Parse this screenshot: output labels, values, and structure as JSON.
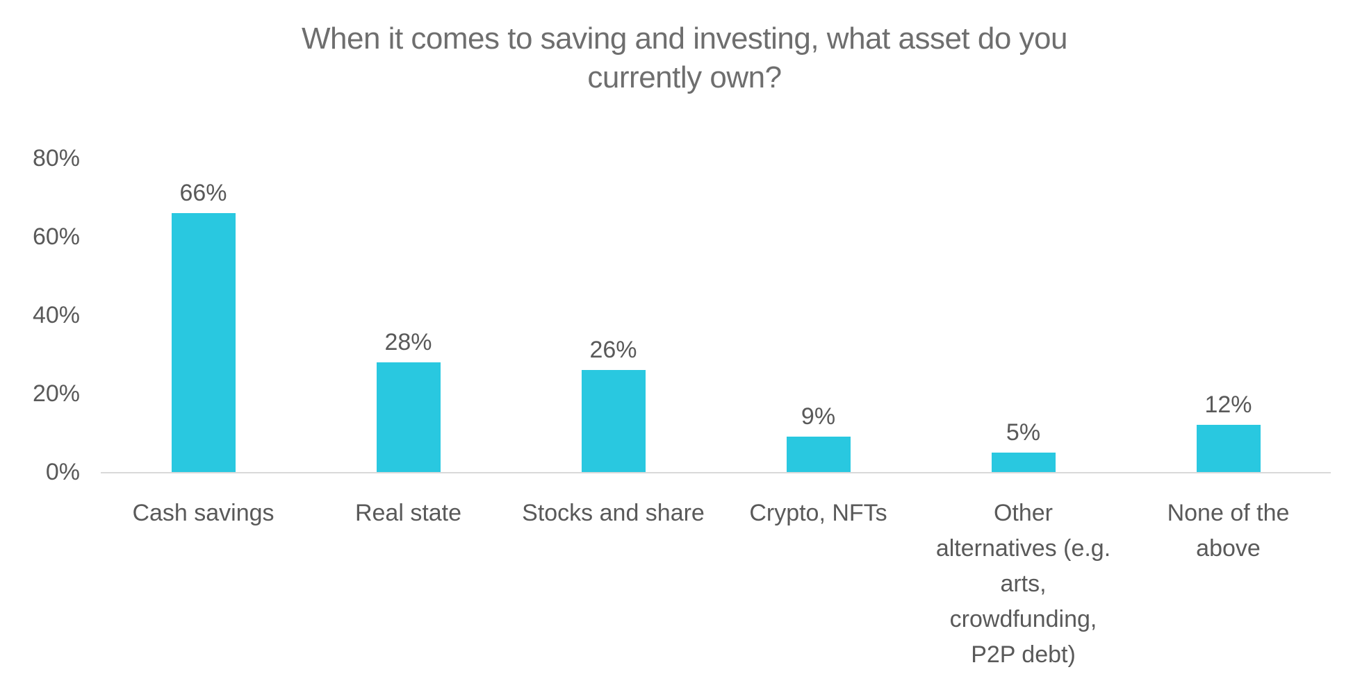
{
  "chart_data": {
    "type": "bar",
    "title": "When it comes to saving and investing, what asset do you currently own?",
    "title_display": "When it comes to saving and investing, what asset do you\ncurrently own?",
    "categories": [
      "Cash savings",
      "Real state",
      "Stocks and share",
      "Crypto, NFTs",
      "Other alternatives (e.g. arts, crowdfunding, P2P debt)",
      "None of the above"
    ],
    "categories_display": [
      "Cash savings",
      "Real state",
      "Stocks and share",
      "Crypto, NFTs",
      "Other\nalternatives (e.g.\narts,\ncrowdfunding,\nP2P debt)",
      "None of the\nabove"
    ],
    "values": [
      66,
      28,
      26,
      9,
      5,
      12
    ],
    "data_labels": [
      "66%",
      "28%",
      "26%",
      "9%",
      "5%",
      "12%"
    ],
    "y_ticks": [
      {
        "label": "0%",
        "value": 0
      },
      {
        "label": "20%",
        "value": 20
      },
      {
        "label": "40%",
        "value": 40
      },
      {
        "label": "60%",
        "value": 60
      },
      {
        "label": "80%",
        "value": 80
      }
    ],
    "ylim": [
      0,
      80
    ],
    "xlabel": "",
    "ylabel": "",
    "legend": "none",
    "gridlines": false,
    "colors": {
      "bar": "#29c8e0",
      "title_text": "#6e6e6e",
      "axis_text": "#595959",
      "axis_line": "#d9d9d9",
      "background": "#ffffff"
    }
  }
}
